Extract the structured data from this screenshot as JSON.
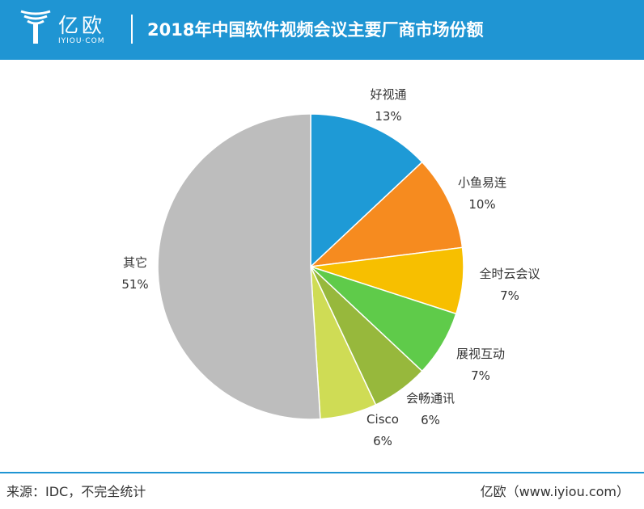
{
  "header": {
    "logo_text": "亿欧",
    "logo_sub": "IYIOU·COM",
    "title": "2018年中国软件视频会议主要厂商市场份额"
  },
  "footer": {
    "source": "来源：IDC，不完全统计",
    "credit": "亿欧（www.iyiou.com）"
  },
  "colors": {
    "header_bg": "#1f95d3"
  },
  "chart_data": {
    "type": "pie",
    "title": "2018年中国软件视频会议主要厂商市场份额",
    "slices": [
      {
        "name": "好视通",
        "value": 13,
        "label": "13%",
        "color": "#1e9ad6"
      },
      {
        "name": "小鱼易连",
        "value": 10,
        "label": "10%",
        "color": "#f68b1f"
      },
      {
        "name": "全时云会议",
        "value": 7,
        "label": "7%",
        "color": "#f7bf00"
      },
      {
        "name": "展视互动",
        "value": 7,
        "label": "7%",
        "color": "#5fcb4a"
      },
      {
        "name": "会畅通讯",
        "value": 6,
        "label": "6%",
        "color": "#97b83c"
      },
      {
        "name": "Cisco",
        "value": 6,
        "label": "6%",
        "color": "#cfdc55"
      },
      {
        "name": "其它",
        "value": 51,
        "label": "51%",
        "color": "#bdbdbd"
      }
    ]
  }
}
